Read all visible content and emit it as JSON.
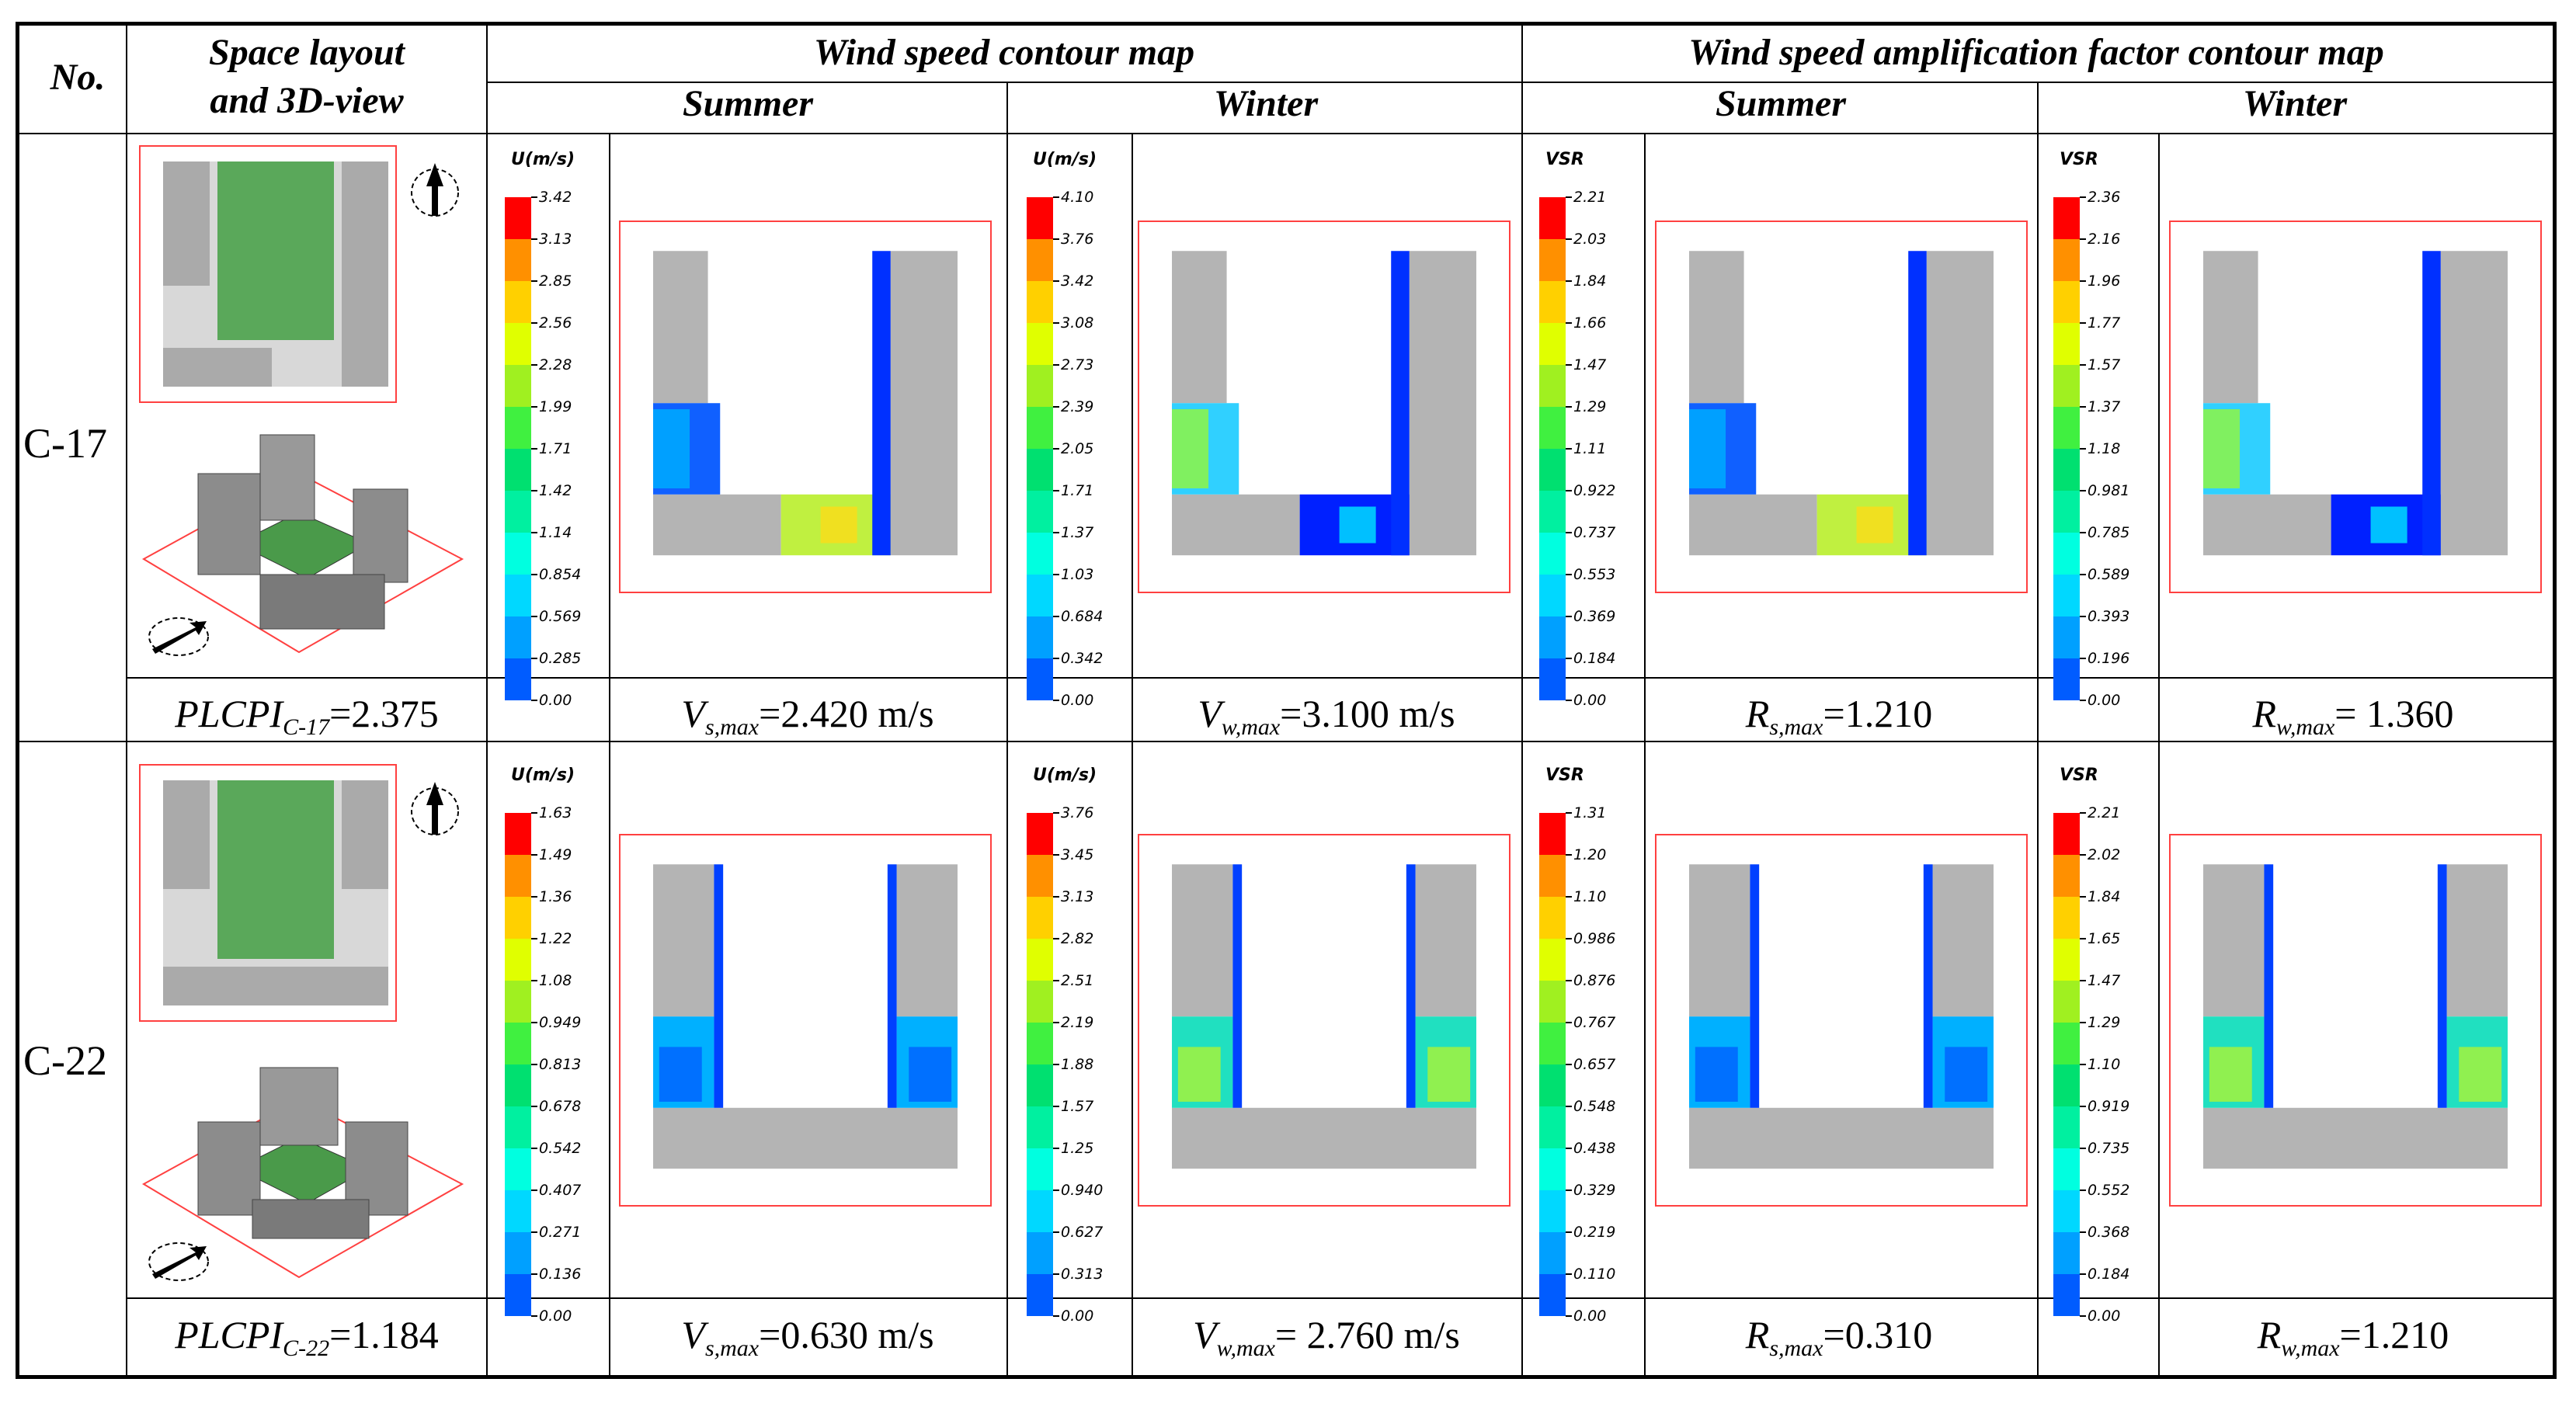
{
  "header": {
    "no": "No.",
    "layout_line1": "Space layout",
    "layout_line2": "and 3D-view",
    "wind_speed": "Wind speed contour map",
    "amplification": "Wind speed amplification factor contour map",
    "summer": "Summer",
    "winter": "Winter"
  },
  "legend_titles": {
    "speed": "U(m/s)",
    "vsr": "VSR"
  },
  "palette": [
    "#0000ff",
    "#005cff",
    "#00a0ff",
    "#00d8ff",
    "#00ffe0",
    "#00f0a0",
    "#00e070",
    "#40f040",
    "#a0f020",
    "#e0ff00",
    "#ffd000",
    "#ff9000",
    "#ff0000"
  ],
  "rows": [
    {
      "id": "C-17",
      "plcpi_label": "PLCPI",
      "plcpi_sub": "C-17",
      "plcpi_value": "=2.375",
      "legends": {
        "speed_summer": [
          "3.42",
          "3.13",
          "2.85",
          "2.56",
          "2.28",
          "1.99",
          "1.71",
          "1.42",
          "1.14",
          "0.854",
          "0.569",
          "0.285",
          "0.00"
        ],
        "speed_winter": [
          "4.10",
          "3.76",
          "3.42",
          "3.08",
          "2.73",
          "2.39",
          "2.05",
          "1.71",
          "1.37",
          "1.03",
          "0.684",
          "0.342",
          "0.00"
        ],
        "vsr_summer": [
          "2.21",
          "2.03",
          "1.84",
          "1.66",
          "1.47",
          "1.29",
          "1.11",
          "0.922",
          "0.737",
          "0.553",
          "0.369",
          "0.184",
          "0.00"
        ],
        "vsr_winter": [
          "2.36",
          "2.16",
          "1.96",
          "1.77",
          "1.57",
          "1.37",
          "1.18",
          "0.981",
          "0.785",
          "0.589",
          "0.393",
          "0.196",
          "0.00"
        ]
      },
      "metrics": [
        {
          "sym": "V",
          "sub": "s,max",
          "val": "=2.420 m/s"
        },
        {
          "sym": "V",
          "sub": "w,max",
          "val": "=3.100 m/s"
        },
        {
          "sym": "R",
          "sub": "s,max",
          "val": "=1.210"
        },
        {
          "sym": "R",
          "sub": "w,max",
          "val": "= 1.360"
        }
      ]
    },
    {
      "id": "C-22",
      "plcpi_label": "PLCPI",
      "plcpi_sub": "C-22",
      "plcpi_value": "=1.184",
      "legends": {
        "speed_summer": [
          "1.63",
          "1.49",
          "1.36",
          "1.22",
          "1.08",
          "0.949",
          "0.813",
          "0.678",
          "0.542",
          "0.407",
          "0.271",
          "0.136",
          "0.00"
        ],
        "speed_winter": [
          "3.76",
          "3.45",
          "3.13",
          "2.82",
          "2.51",
          "2.19",
          "1.88",
          "1.57",
          "1.25",
          "0.940",
          "0.627",
          "0.313",
          "0.00"
        ],
        "vsr_summer": [
          "1.31",
          "1.20",
          "1.10",
          "0.986",
          "0.876",
          "0.767",
          "0.657",
          "0.548",
          "0.438",
          "0.329",
          "0.219",
          "0.110",
          "0.00"
        ],
        "vsr_winter": [
          "2.21",
          "2.02",
          "1.84",
          "1.65",
          "1.47",
          "1.29",
          "1.10",
          "0.919",
          "0.735",
          "0.552",
          "0.368",
          "0.184",
          "0.00"
        ]
      },
      "metrics": [
        {
          "sym": "V",
          "sub": "s,max",
          "val": "=0.630 m/s"
        },
        {
          "sym": "V",
          "sub": "w,max",
          "val": "= 2.760 m/s"
        },
        {
          "sym": "R",
          "sub": "s,max",
          "val": "=0.310"
        },
        {
          "sym": "R",
          "sub": "w,max",
          "val": "=1.210"
        }
      ]
    }
  ]
}
